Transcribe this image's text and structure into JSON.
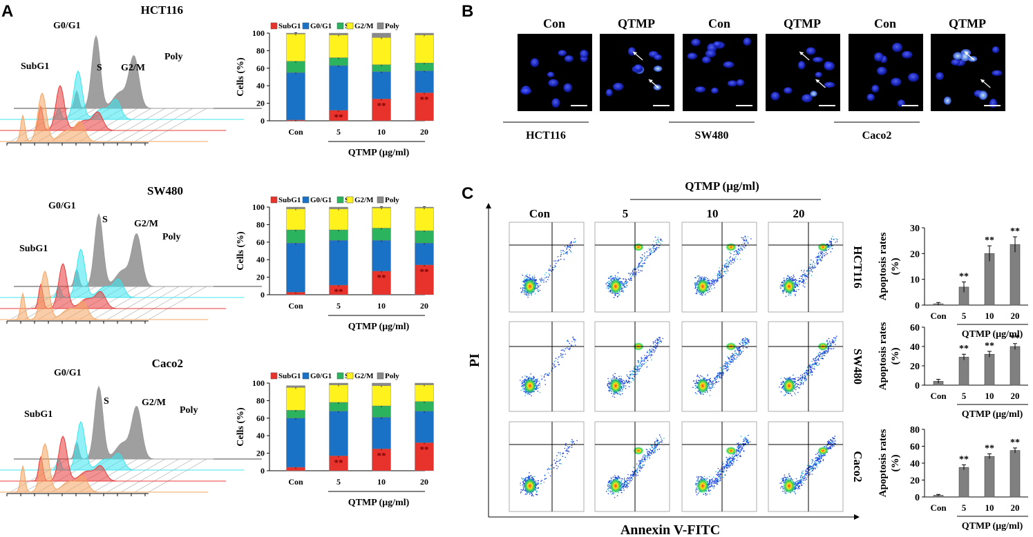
{
  "panel_letters": [
    "A",
    "B",
    "C"
  ],
  "cell_lines": [
    "HCT116",
    "SW480",
    "Caco2"
  ],
  "histogram": {
    "peak_labels": [
      "SubG1",
      "G0/G1",
      "S",
      "G2/M",
      "Poly"
    ],
    "trace_colors": [
      "#9a9a9a",
      "#39e5ee",
      "#e83838",
      "#f4a460"
    ]
  },
  "cell_cycle": {
    "legend": [
      "SubG1",
      "G0/G1",
      "S",
      "G2/M",
      "Poly"
    ],
    "colors": [
      "#e8332d",
      "#1a72c6",
      "#2bb35e",
      "#fff21d",
      "#8a8a8a"
    ],
    "ylabel": "Cells  (%)",
    "xlabel": "QTMP (µg/ml)",
    "ticks": [
      "0",
      "20",
      "40",
      "60",
      "80",
      "100"
    ],
    "significance": "**"
  },
  "imaging": {
    "headers": [
      "Con",
      "QTMP",
      "Con",
      "QTMP",
      "Con",
      "QTMP"
    ],
    "line_labels": [
      "HCT116",
      "SW480",
      "Caco2"
    ]
  },
  "flow": {
    "group_header": "QTMP  (µg/ml)",
    "column_headers": [
      "Con",
      "5",
      "10",
      "20"
    ],
    "y_axis": "PI",
    "x_axis": "Annexin V-FITC"
  },
  "apoptosis": {
    "ylabel_line1": "Apoptosis rates",
    "ylabel_line2": "(%)",
    "xlabel": "QTMP (µg/ml)",
    "significance": "**"
  },
  "chart_data": [
    {
      "type": "bar",
      "stacked": true,
      "title": "HCT116 cell cycle distribution",
      "categories": [
        "Con",
        "5",
        "10",
        "20"
      ],
      "ylabel": "Cells (%)",
      "xlabel": "QTMP (µg/ml)",
      "ylim": [
        0,
        100
      ],
      "series": [
        {
          "name": "SubG1",
          "values": [
            1,
            12,
            25,
            32
          ]
        },
        {
          "name": "G0/G1",
          "values": [
            54,
            51,
            31,
            25
          ]
        },
        {
          "name": "S",
          "values": [
            13,
            9,
            8,
            9
          ]
        },
        {
          "name": "G2/M",
          "values": [
            31,
            26,
            31,
            32
          ]
        },
        {
          "name": "Poly",
          "values": [
            1,
            2,
            5,
            2
          ]
        }
      ],
      "annotations": [
        "",
        "**",
        "**",
        "**"
      ]
    },
    {
      "type": "bar",
      "stacked": true,
      "title": "SW480 cell cycle distribution",
      "categories": [
        "Con",
        "5",
        "10",
        "20"
      ],
      "ylabel": "Cells (%)",
      "xlabel": "QTMP (µg/ml)",
      "ylim": [
        0,
        100
      ],
      "series": [
        {
          "name": "SubG1",
          "values": [
            3,
            11,
            27,
            34
          ]
        },
        {
          "name": "G0/G1",
          "values": [
            56,
            51,
            35,
            25
          ]
        },
        {
          "name": "S",
          "values": [
            15,
            12,
            14,
            14
          ]
        },
        {
          "name": "G2/M",
          "values": [
            24,
            24,
            23,
            26
          ]
        },
        {
          "name": "Poly",
          "values": [
            2,
            2,
            1,
            1
          ]
        }
      ],
      "annotations": [
        "",
        "**",
        "**",
        "**"
      ]
    },
    {
      "type": "bar",
      "stacked": true,
      "title": "Caco2 cell cycle distribution",
      "categories": [
        "Con",
        "5",
        "10",
        "20"
      ],
      "ylabel": "Cells (%)",
      "xlabel": "QTMP (µg/ml)",
      "ylim": [
        0,
        100
      ],
      "series": [
        {
          "name": "SubG1",
          "values": [
            4,
            17,
            25,
            32
          ]
        },
        {
          "name": "G0/G1",
          "values": [
            56,
            51,
            36,
            36
          ]
        },
        {
          "name": "S",
          "values": [
            9,
            10,
            13,
            11
          ]
        },
        {
          "name": "G2/M",
          "values": [
            26,
            20,
            23,
            19
          ]
        },
        {
          "name": "Poly",
          "values": [
            2,
            2,
            3,
            2
          ]
        }
      ],
      "annotations": [
        "",
        "**",
        "**",
        "**"
      ]
    },
    {
      "type": "bar",
      "title": "HCT116 apoptosis rates",
      "categories": [
        "Con",
        "5",
        "10",
        "20"
      ],
      "values": [
        0.5,
        7,
        20,
        23.5
      ],
      "errors": [
        0.5,
        2,
        3,
        3
      ],
      "ylabel": "Apoptosis rates (%)",
      "xlabel": "QTMP (µg/ml)",
      "ylim": [
        0,
        30
      ],
      "ticks": [
        0,
        10,
        20,
        30
      ],
      "annotations": [
        "",
        "**",
        "**",
        "**"
      ]
    },
    {
      "type": "bar",
      "title": "SW480 apoptosis rates",
      "categories": [
        "Con",
        "5",
        "10",
        "20"
      ],
      "values": [
        4,
        29,
        32,
        40
      ],
      "errors": [
        2,
        3,
        3,
        3
      ],
      "ylabel": "Apoptosis rates (%)",
      "xlabel": "QTMP (µg/ml)",
      "ylim": [
        0,
        60
      ],
      "ticks": [
        0,
        20,
        40,
        60
      ],
      "annotations": [
        "",
        "**",
        "**",
        "**"
      ]
    },
    {
      "type": "bar",
      "title": "Caco2 apoptosis rates",
      "categories": [
        "Con",
        "5",
        "10",
        "20"
      ],
      "values": [
        2,
        35,
        48,
        55
      ],
      "errors": [
        1,
        3,
        3,
        3
      ],
      "ylabel": "Apoptosis rates (%)",
      "xlabel": "QTMP (µg/ml)",
      "ylim": [
        0,
        80
      ],
      "ticks": [
        0,
        20,
        40,
        60,
        80
      ],
      "annotations": [
        "",
        "**",
        "**",
        "**"
      ]
    }
  ]
}
